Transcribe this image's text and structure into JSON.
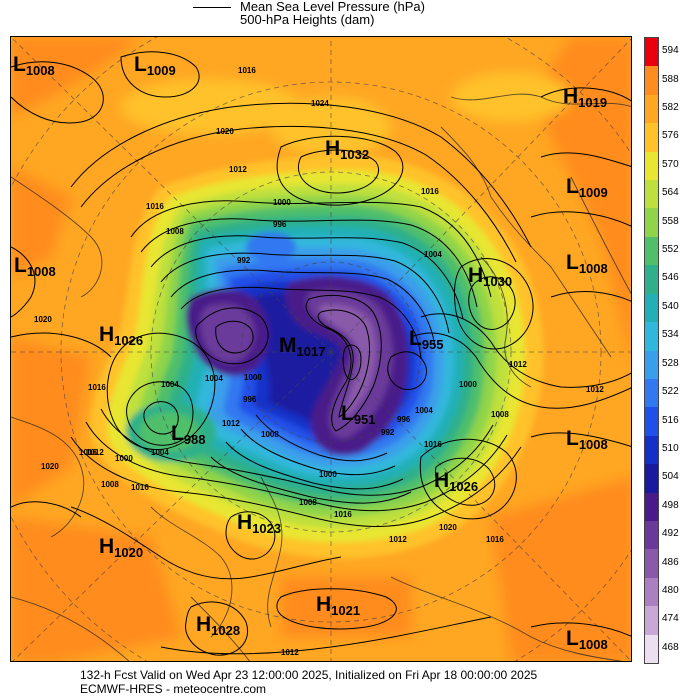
{
  "legend": {
    "line1": "Mean Sea Level Pressure (hPa)",
    "line2": "500-hPa Heights (dam)"
  },
  "colorbar": {
    "labels": [
      "594",
      "588",
      "582",
      "576",
      "570",
      "564",
      "558",
      "552",
      "546",
      "540",
      "534",
      "528",
      "522",
      "516",
      "510",
      "504",
      "498",
      "492",
      "486",
      "480",
      "474",
      "468"
    ],
    "colors": [
      "#e8000e",
      "#ff8c1e",
      "#ffa623",
      "#ffc22a",
      "#e8e632",
      "#bfe03c",
      "#8fd44a",
      "#4fbf6a",
      "#2fb08a",
      "#22b0b6",
      "#30b8dc",
      "#3a9fea",
      "#3278f0",
      "#2050e8",
      "#1530c8",
      "#1a1aa0",
      "#4a1a8a",
      "#6a3a9a",
      "#8a5aaa",
      "#aa80c0",
      "#c9a8d8",
      "#ece0f0"
    ]
  },
  "systems": [
    {
      "type": "L",
      "value": "1008"
    },
    {
      "type": "L",
      "value": "1009"
    },
    {
      "type": "H",
      "value": "1019"
    },
    {
      "type": "H",
      "value": "1032"
    },
    {
      "type": "L",
      "value": "1009"
    },
    {
      "type": "L",
      "value": "1008"
    },
    {
      "type": "H",
      "value": "1030"
    },
    {
      "type": "L",
      "value": "1008"
    },
    {
      "type": "H",
      "value": "1026"
    },
    {
      "type": "M",
      "value": "1017"
    },
    {
      "type": "L",
      "value": "955"
    },
    {
      "type": "L",
      "value": "951"
    },
    {
      "type": "L",
      "value": "988"
    },
    {
      "type": "L",
      "value": "1008"
    },
    {
      "type": "H",
      "value": "1026"
    },
    {
      "type": "H",
      "value": "1023"
    },
    {
      "type": "H",
      "value": "1020"
    },
    {
      "type": "H",
      "value": "1021"
    },
    {
      "type": "H",
      "value": "1028"
    },
    {
      "type": "L",
      "value": "1008"
    }
  ],
  "isobar_labels": [
    "1016",
    "1024",
    "1020",
    "1012",
    "1016",
    "1008",
    "996",
    "1000",
    "992",
    "1020",
    "1016",
    "1004",
    "1004",
    "1000",
    "996",
    "1012",
    "1008",
    "1016",
    "1000",
    "1004",
    "1012",
    "1008",
    "1020",
    "1016",
    "1008",
    "1000",
    "1012",
    "1016",
    "1004",
    "996",
    "992",
    "1008",
    "1012",
    "1016",
    "1004",
    "1000",
    "1012",
    "1016",
    "1020",
    "1016",
    "1012"
  ],
  "footer": {
    "line1": "132-h Fcst Valid on Wed Apr 23 12:00:00 2025, Initialized on Fri Apr 18 00:00:00 2025",
    "line2": "ECMWF-HRES - meteocentre.com"
  }
}
